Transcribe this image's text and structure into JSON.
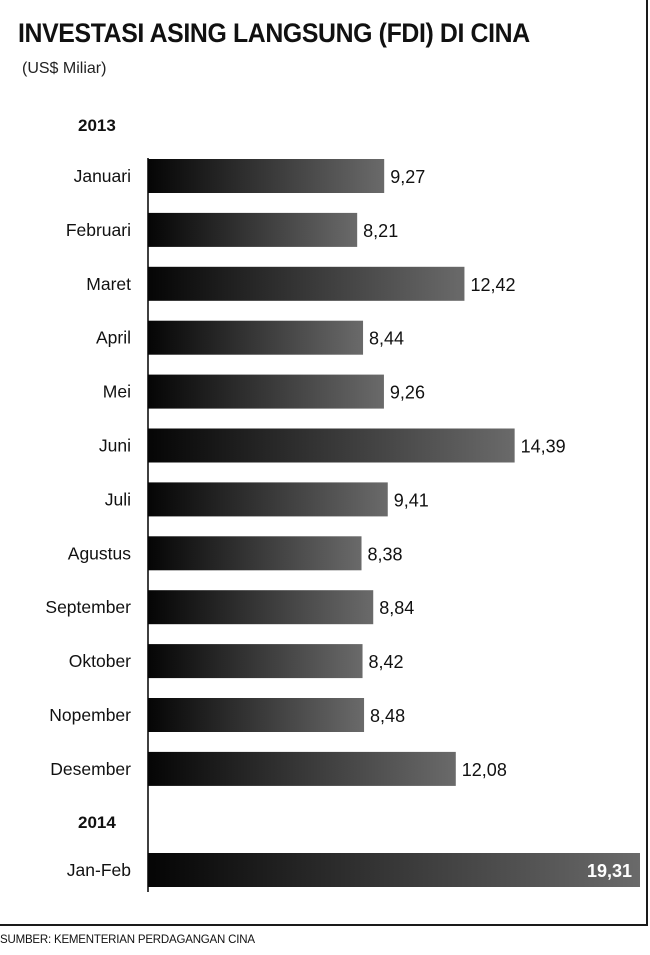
{
  "title": "INVESTASI ASING LANGSUNG (FDI) DI CINA",
  "subtitle": "(US$ Miliar)",
  "source": "SUMBER: KEMENTERIAN PERDAGANGAN CINA",
  "colors": {
    "bar_dark": "#050505",
    "bar_light": "#6a6a6a",
    "text": "#111111",
    "inner_label": "#ffffff"
  },
  "chart_data": {
    "type": "bar",
    "orientation": "horizontal",
    "groups": [
      {
        "year": "2013",
        "categories": [
          "Januari",
          "Februari",
          "Maret",
          "April",
          "Mei",
          "Juni",
          "Juli",
          "Agustus",
          "September",
          "Oktober",
          "Nopember",
          "Desember"
        ],
        "values": [
          9.27,
          8.21,
          12.42,
          8.44,
          9.26,
          14.39,
          9.41,
          8.38,
          8.84,
          8.42,
          8.48,
          12.08
        ],
        "labels": [
          "9,27",
          "8,21",
          "12,42",
          "8,44",
          "9,26",
          "14,39",
          "9,41",
          "8,38",
          "8,84",
          "8,42",
          "8,48",
          "12,08"
        ]
      },
      {
        "year": "2014",
        "categories": [
          "Jan-Feb"
        ],
        "values": [
          19.31
        ],
        "labels": [
          "19,31"
        ]
      }
    ],
    "xlim": [
      0,
      19.31
    ],
    "grid": false,
    "legend": "none"
  }
}
